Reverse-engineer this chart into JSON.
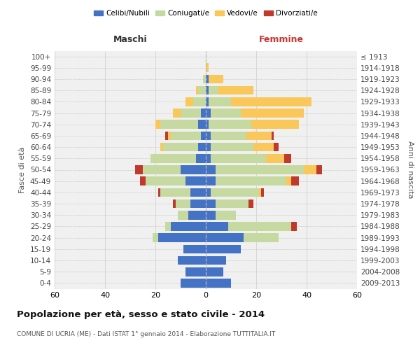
{
  "age_groups": [
    "0-4",
    "5-9",
    "10-14",
    "15-19",
    "20-24",
    "25-29",
    "30-34",
    "35-39",
    "40-44",
    "45-49",
    "50-54",
    "55-59",
    "60-64",
    "65-69",
    "70-74",
    "75-79",
    "80-84",
    "85-89",
    "90-94",
    "95-99",
    "100+"
  ],
  "birth_years": [
    "2009-2013",
    "2004-2008",
    "1999-2003",
    "1994-1998",
    "1989-1993",
    "1984-1988",
    "1979-1983",
    "1974-1978",
    "1969-1973",
    "1964-1968",
    "1959-1963",
    "1954-1958",
    "1949-1953",
    "1944-1948",
    "1939-1943",
    "1934-1938",
    "1929-1933",
    "1924-1928",
    "1919-1923",
    "1914-1918",
    "≤ 1913"
  ],
  "colors": {
    "celibi": "#4472c4",
    "coniugati": "#c5d9a0",
    "vedovi": "#f9c75a",
    "divorziati": "#c0392b"
  },
  "males": {
    "celibi": [
      10,
      8,
      11,
      9,
      19,
      14,
      7,
      6,
      6,
      8,
      10,
      4,
      3,
      2,
      3,
      2,
      0,
      0,
      0,
      0,
      0
    ],
    "coniugati": [
      0,
      0,
      0,
      0,
      2,
      2,
      4,
      6,
      12,
      16,
      15,
      18,
      14,
      12,
      15,
      8,
      5,
      3,
      1,
      0,
      0
    ],
    "vedovi": [
      0,
      0,
      0,
      0,
      0,
      0,
      0,
      0,
      0,
      0,
      0,
      0,
      1,
      1,
      2,
      3,
      3,
      1,
      0,
      0,
      0
    ],
    "divorziati": [
      0,
      0,
      0,
      0,
      0,
      0,
      0,
      1,
      1,
      2,
      3,
      0,
      0,
      1,
      0,
      0,
      0,
      0,
      0,
      0,
      0
    ]
  },
  "females": {
    "celibi": [
      10,
      7,
      8,
      14,
      15,
      9,
      4,
      4,
      2,
      4,
      4,
      2,
      2,
      2,
      1,
      2,
      1,
      1,
      1,
      0,
      0
    ],
    "coniugati": [
      0,
      0,
      0,
      0,
      14,
      25,
      8,
      13,
      19,
      28,
      35,
      22,
      17,
      14,
      17,
      12,
      9,
      4,
      0,
      0,
      0
    ],
    "vedovi": [
      0,
      0,
      0,
      0,
      0,
      0,
      0,
      0,
      1,
      2,
      5,
      7,
      8,
      10,
      19,
      25,
      32,
      14,
      6,
      1,
      0
    ],
    "divorziati": [
      0,
      0,
      0,
      0,
      0,
      2,
      0,
      2,
      1,
      3,
      2,
      3,
      2,
      1,
      0,
      0,
      0,
      0,
      0,
      0,
      0
    ]
  },
  "title": "Popolazione per età, sesso e stato civile - 2014",
  "subtitle": "COMUNE DI UCRIA (ME) - Dati ISTAT 1° gennaio 2014 - Elaborazione TUTTITALIA.IT",
  "ylabel_left": "Fasce di età",
  "ylabel_right": "Anni di nascita",
  "xlabel_left": "Maschi",
  "xlabel_right": "Femmine",
  "xlim": 60,
  "legend_labels": [
    "Celibi/Nubili",
    "Coniugati/e",
    "Vedovi/e",
    "Divorziati/e"
  ],
  "background_color": "#f0f0f0"
}
